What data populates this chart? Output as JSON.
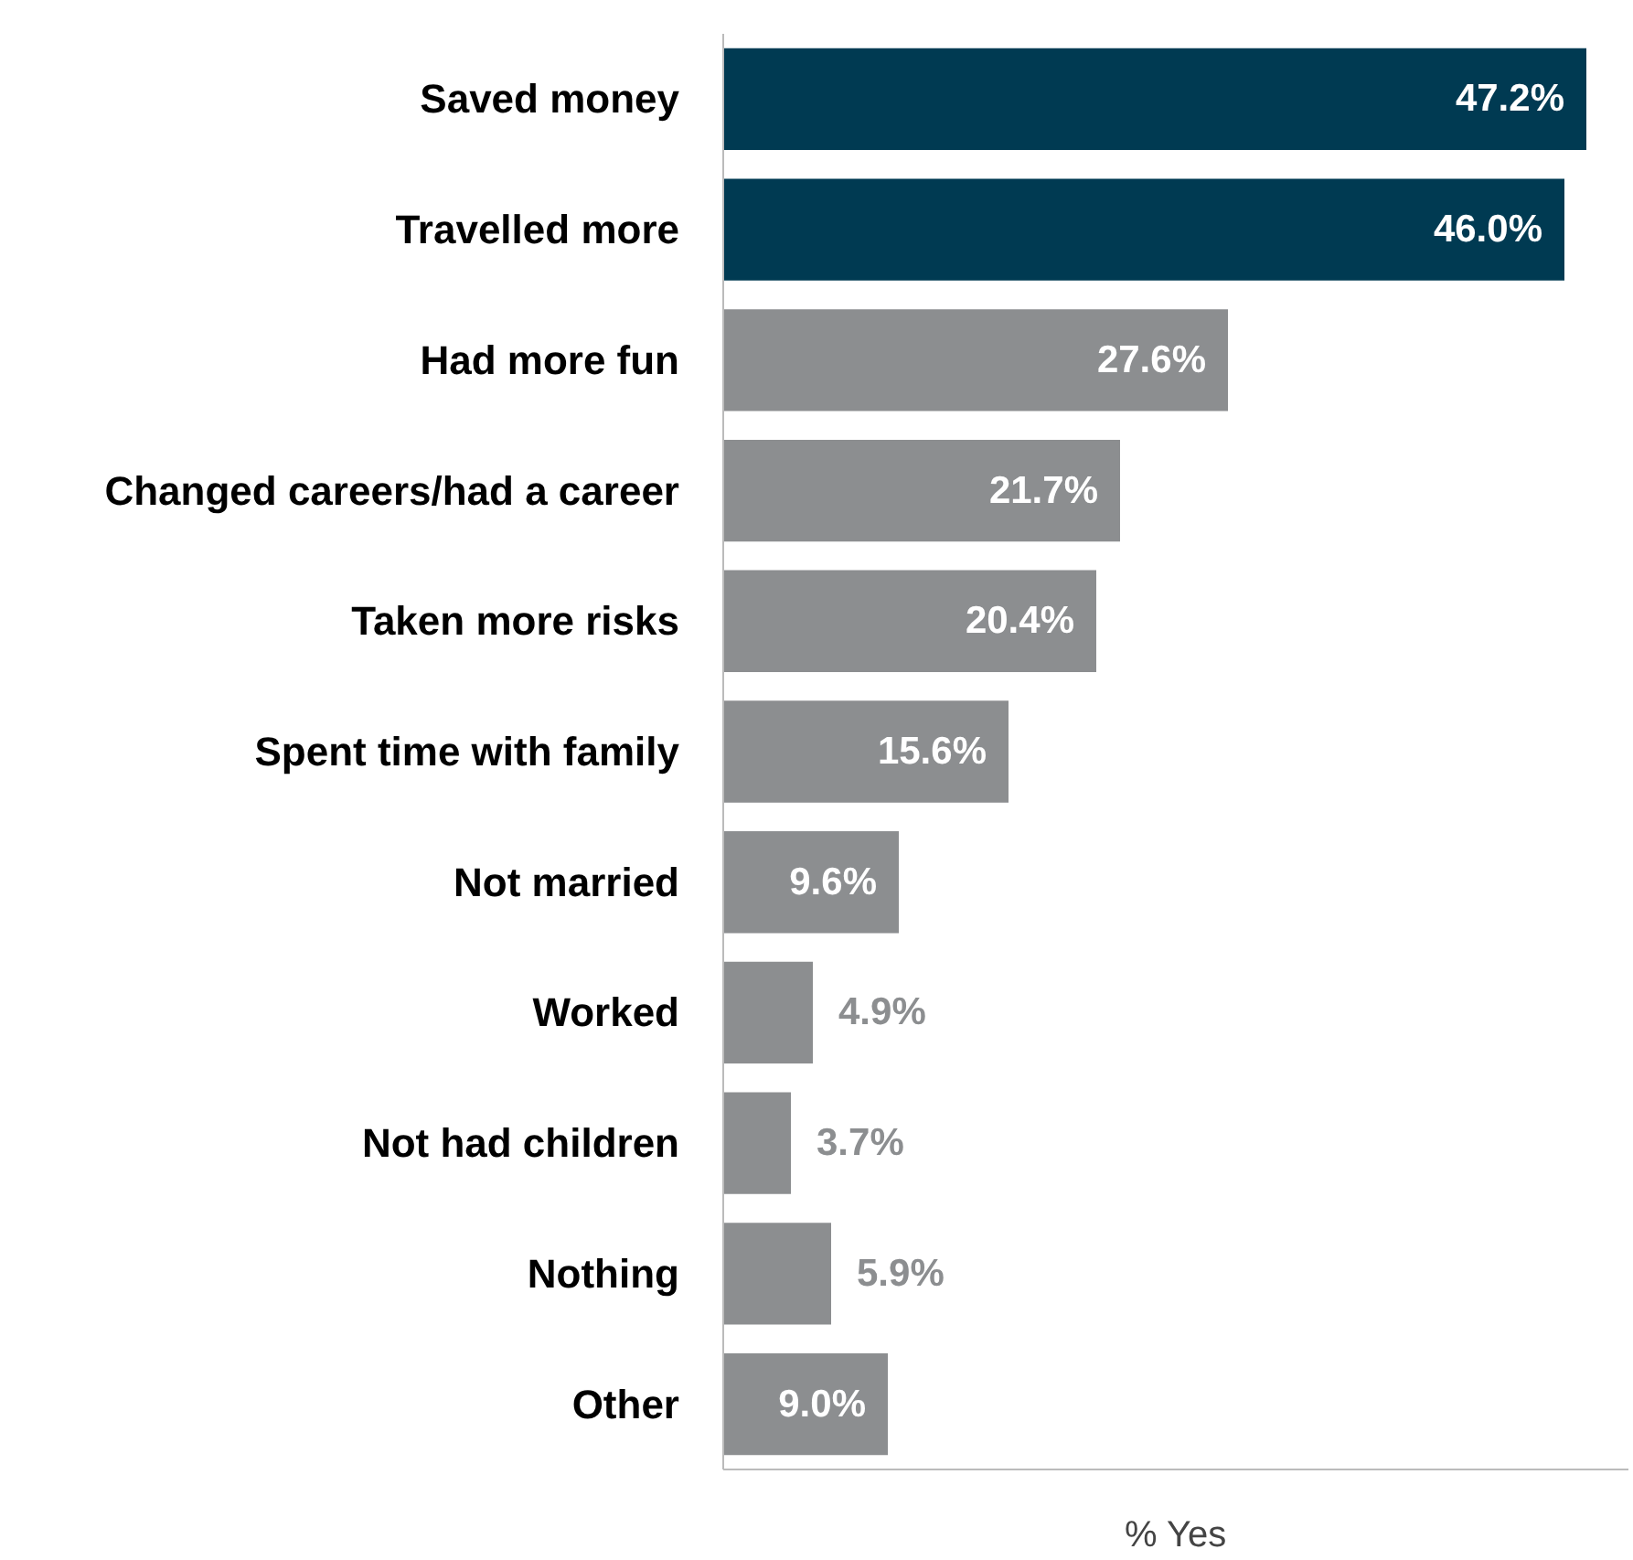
{
  "chart_data": {
    "type": "bar",
    "orientation": "horizontal",
    "xlabel": "% Yes",
    "categories": [
      "Saved money",
      "Travelled more",
      "Had more fun",
      "Changed careers/had a career",
      "Taken more risks",
      "Spent time with family",
      "Not married",
      "Worked",
      "Not had children",
      "Nothing",
      "Other"
    ],
    "values": [
      47.2,
      46.0,
      27.6,
      21.7,
      20.4,
      15.6,
      9.6,
      4.9,
      3.7,
      5.9,
      9.0
    ],
    "colors": [
      "#003a52",
      "#003a52",
      "#8c8e90",
      "#8c8e90",
      "#8c8e90",
      "#8c8e90",
      "#8c8e90",
      "#8c8e90",
      "#8c8e90",
      "#8c8e90",
      "#8c8e90"
    ],
    "value_labels": [
      "47.2%",
      "46.0%",
      "27.6%",
      "21.7%",
      "20.4%",
      "15.6%",
      "9.6%",
      "4.9%",
      "3.7%",
      "5.9%",
      "9.0%"
    ],
    "xlim": [
      0,
      49.5
    ],
    "tick_labels": "y",
    "grid": false
  }
}
